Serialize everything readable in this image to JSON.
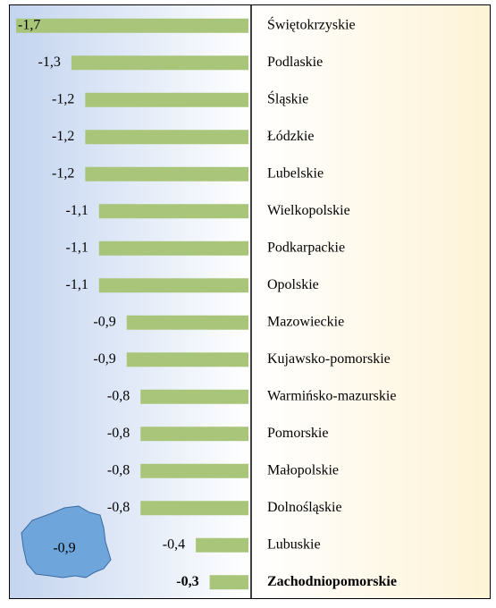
{
  "chart_data": {
    "type": "bar",
    "orientation": "horizontal",
    "categories": [
      "Świętokrzyskie",
      "Podlaskie",
      "Śląskie",
      "Łódzkie",
      "Lubelskie",
      "Wielkopolskie",
      "Podkarpackie",
      "Opolskie",
      "Mazowieckie",
      "Kujawsko-pomorskie",
      "Warmińsko-mazurskie",
      "Pomorskie",
      "Małopolskie",
      "Dolnośląskie",
      "Lubuskie",
      "Zachodniopomorskie"
    ],
    "values": [
      -1.7,
      -1.3,
      -1.2,
      -1.2,
      -1.2,
      -1.1,
      -1.1,
      -1.1,
      -0.9,
      -0.9,
      -0.8,
      -0.8,
      -0.8,
      -0.8,
      -0.4,
      -0.3
    ],
    "value_labels": [
      "-1,7",
      "-1,3",
      "-1,2",
      "-1,2",
      "-1,2",
      "-1,1",
      "-1,1",
      "-1,1",
      "-0,9",
      "-0,9",
      "-0,8",
      "-0,8",
      "-0,8",
      "-0,8",
      "-0,4",
      "-0,3"
    ],
    "color": "#a9c57a",
    "xlim": [
      -1.7,
      0
    ],
    "highlight_index": 15,
    "national": {
      "value": -0.9,
      "label": "-0,9",
      "color": "#6ea6dc"
    }
  }
}
